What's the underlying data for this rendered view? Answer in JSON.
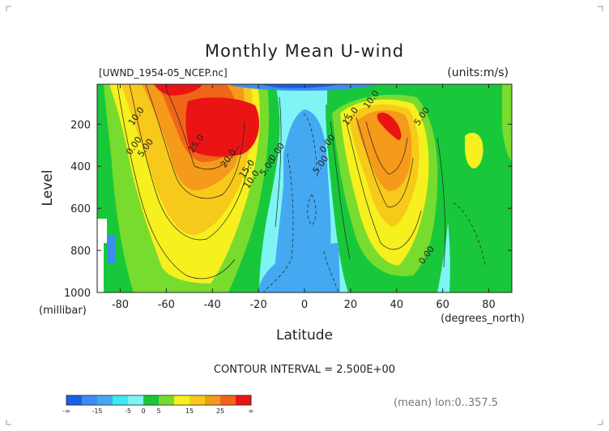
{
  "chart_data": {
    "type": "contour",
    "title": "Monthly Mean U-wind",
    "dataset_label": "[UWND_1954-05_NCEP.nc]",
    "units_label": "(units:m/s)",
    "xlabel": "Latitude",
    "x_unit_label": "(degrees_north)",
    "ylabel": "Level",
    "y_unit_label": "(millibar)",
    "contour_interval_text": "CONTOUR INTERVAL = 2.500E+00",
    "averaging_note": "(mean) lon:0..357.5",
    "xlim": [
      -90,
      90
    ],
    "ylim": [
      1000,
      10
    ],
    "x_ticks": [
      {
        "v": -80,
        "label": "-80"
      },
      {
        "v": -60,
        "label": "-60"
      },
      {
        "v": -40,
        "label": "-40"
      },
      {
        "v": -20,
        "label": "-20"
      },
      {
        "v": 0,
        "label": "0"
      },
      {
        "v": 20,
        "label": "20"
      },
      {
        "v": 40,
        "label": "40"
      },
      {
        "v": 60,
        "label": "60"
      },
      {
        "v": 80,
        "label": "80"
      }
    ],
    "y_ticks": [
      {
        "v": 200,
        "label": "200"
      },
      {
        "v": 400,
        "label": "400"
      },
      {
        "v": 600,
        "label": "600"
      },
      {
        "v": 800,
        "label": "800"
      },
      {
        "v": 1000,
        "label": "1000"
      }
    ],
    "contour_labels": [
      {
        "text": "10.0",
        "lat": -72,
        "lev": 170
      },
      {
        "text": "5.00",
        "lat": -68,
        "lev": 320
      },
      {
        "text": "0.00",
        "lat": -73,
        "lev": 310
      },
      {
        "text": "25.0",
        "lat": -46,
        "lev": 300
      },
      {
        "text": "20.0",
        "lat": -32,
        "lev": 370
      },
      {
        "text": "15.0",
        "lat": -24,
        "lev": 420
      },
      {
        "text": "10.0",
        "lat": -22,
        "lev": 470
      },
      {
        "text": "5.00",
        "lat": -15,
        "lev": 410
      },
      {
        "text": "0.00",
        "lat": -11,
        "lev": 340
      },
      {
        "text": "0.00",
        "lat": 11,
        "lev": 300
      },
      {
        "text": "5.00",
        "lat": 8,
        "lev": 400
      },
      {
        "text": "10.0",
        "lat": 30,
        "lev": 90
      },
      {
        "text": "15.0",
        "lat": 21,
        "lev": 170
      },
      {
        "text": "5.00",
        "lat": 52,
        "lev": 170
      },
      {
        "text": "0.00",
        "lat": 54,
        "lev": 830
      }
    ],
    "colorbar": {
      "colors": [
        "#1a5fe8",
        "#3d8df0",
        "#44a9f0",
        "#3fe8f0",
        "#7ff4f4",
        "#19c83a",
        "#78dc2e",
        "#f5f01e",
        "#f7c91a",
        "#f59a1a",
        "#f06518",
        "#eb1414"
      ],
      "labels": [
        {
          "label": "-∞",
          "pos": 0
        },
        {
          "label": "-15",
          "pos": 2
        },
        {
          "label": "-5",
          "pos": 4
        },
        {
          "label": "0",
          "pos": 5
        },
        {
          "label": "5",
          "pos": 6
        },
        {
          "label": "15",
          "pos": 8
        },
        {
          "label": "25",
          "pos": 10
        },
        {
          "label": "∞",
          "pos": 12
        }
      ]
    }
  }
}
